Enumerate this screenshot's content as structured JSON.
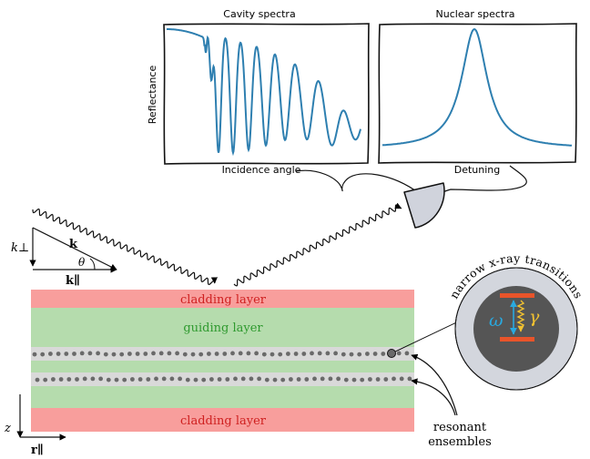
{
  "spectra": {
    "cavity_title": "Cavity spectra",
    "nuclear_title": "Nuclear spectra",
    "ylabel": "Reflectance",
    "cavity_xlabel": "Incidence angle",
    "nuclear_xlabel": "Detuning"
  },
  "geometry_labels": {
    "k_perp": "k⊥",
    "k": "k",
    "theta": "θ",
    "k_par": "k∥",
    "z": "z",
    "r_par": "r∥"
  },
  "layers": {
    "top_cladding": "cladding layer",
    "guiding": "guiding layer",
    "bottom_cladding": "cladding layer"
  },
  "inset": {
    "arc_text": "narrow x-ray transitions",
    "omega": "ω",
    "gamma": "γ"
  },
  "ensembles_label": {
    "line1": "resonant",
    "line2": "ensembles"
  },
  "colors": {
    "cladding": "#f89e9c",
    "guiding": "#b5dcad",
    "ensemble_band": "#d9d9d9",
    "guiding_text": "#2f9a2f",
    "cladding_text": "#cf2020",
    "spectrum_line": "#2e7fb0",
    "inset_outer": "#d3d6dd",
    "inset_inner": "#555555",
    "level": "#e8542a",
    "omega_arrow": "#29a9e0",
    "gamma_wave": "#f2c230"
  }
}
